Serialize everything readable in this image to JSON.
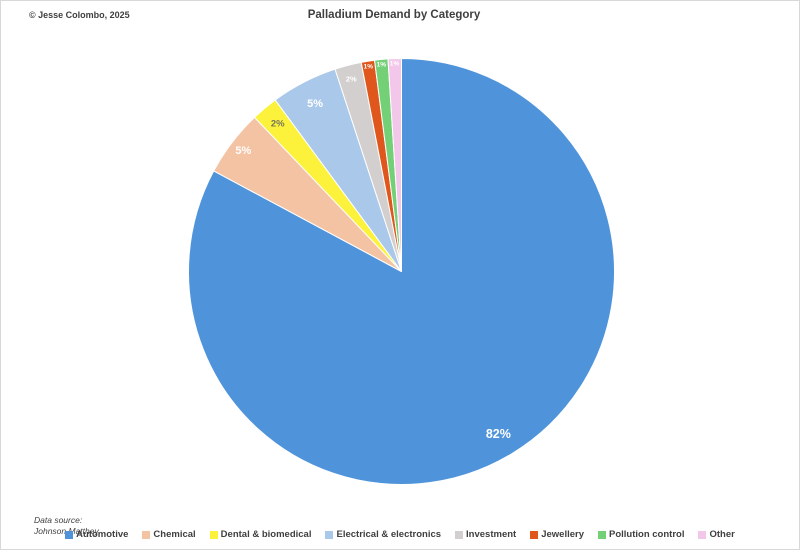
{
  "header": {
    "copyright": "© Jesse Colombo, 2025"
  },
  "footer": {
    "source_label": "Data source:",
    "source_name": "Johnson Matthey"
  },
  "chart_data": {
    "type": "pie",
    "title": "Palladium Demand by Category",
    "unit": "%",
    "start_angle_deg": 0,
    "direction": "clockwise",
    "legend_position": "bottom",
    "categories": [
      "Automotive",
      "Chemical",
      "Dental & biomedical",
      "Electrical & electronics",
      "Investment",
      "Jewellery",
      "Pollution control",
      "Other"
    ],
    "values": [
      82,
      5,
      2,
      5,
      2,
      1,
      1,
      1
    ],
    "labels": [
      "82%",
      "5%",
      "2%",
      "5%",
      "2%",
      "1%",
      "1%",
      "1%"
    ],
    "colors": [
      "#4F94DB",
      "#F4C3A3",
      "#FCF23C",
      "#A9C8EA",
      "#D2CFCE",
      "#DF571D",
      "#74D077",
      "#F2C7E9"
    ]
  }
}
